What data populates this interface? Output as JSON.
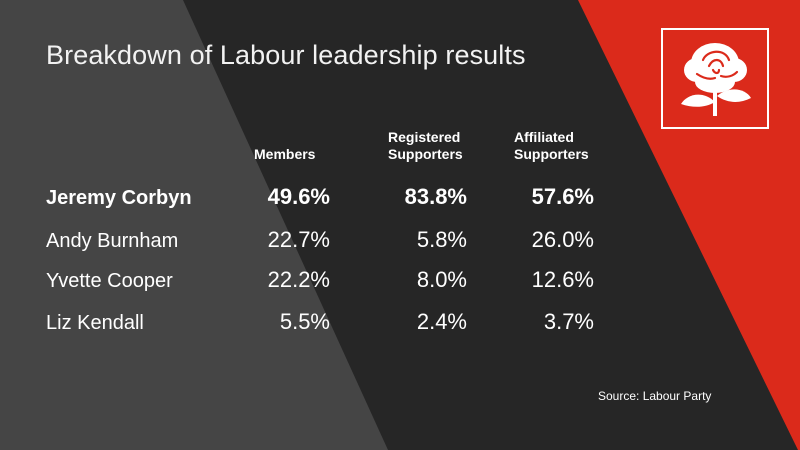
{
  "page": {
    "title": "Breakdown of Labour leadership results",
    "source": "Source: Labour Party"
  },
  "colors": {
    "background_dark": "#262626",
    "panel_grey": "#444444",
    "accent_red": "#db2a1b",
    "text": "#ffffff"
  },
  "icons": {
    "logo": "labour-rose-logo-icon"
  },
  "chart_data": {
    "type": "table",
    "title": "Breakdown of Labour leadership results",
    "columns": [
      {
        "line1": "",
        "line2": "Members"
      },
      {
        "line1": "Registered",
        "line2": "Supporters"
      },
      {
        "line1": "Affiliated",
        "line2": "Supporters"
      }
    ],
    "rows": [
      {
        "name": "Jeremy Corbyn",
        "highlight": true,
        "values": [
          "49.6%",
          "83.8%",
          "57.6%"
        ]
      },
      {
        "name": "Andy Burnham",
        "highlight": false,
        "values": [
          "22.7%",
          "5.8%",
          "26.0%"
        ]
      },
      {
        "name": "Yvette Cooper",
        "highlight": false,
        "values": [
          "22.2%",
          "8.0%",
          "12.6%"
        ]
      },
      {
        "name": "Liz Kendall",
        "highlight": false,
        "values": [
          "5.5%",
          "2.4%",
          "3.7%"
        ]
      }
    ],
    "source": "Source: Labour Party"
  }
}
